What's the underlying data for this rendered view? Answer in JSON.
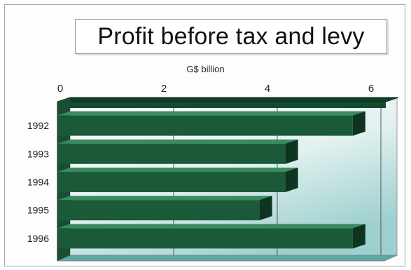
{
  "chart_data": {
    "type": "bar",
    "orientation": "horizontal",
    "title": "Profit before tax and levy",
    "unit_label": "G$ billion",
    "categories": [
      "1992",
      "1993",
      "1994",
      "1995",
      "1996"
    ],
    "values": [
      5.7,
      4.4,
      4.4,
      3.9,
      5.7
    ],
    "xlim": [
      0,
      6.5
    ],
    "xticks": [
      0,
      2,
      4,
      6
    ],
    "grid": true,
    "style": "3d",
    "colors": {
      "bar_front": "#1b5a38",
      "bar_top": "#3b8a5e",
      "bar_side": "#0e3420",
      "plot_gradient_light": "#ffffff",
      "plot_gradient_dark": "#9ed0cf"
    }
  }
}
